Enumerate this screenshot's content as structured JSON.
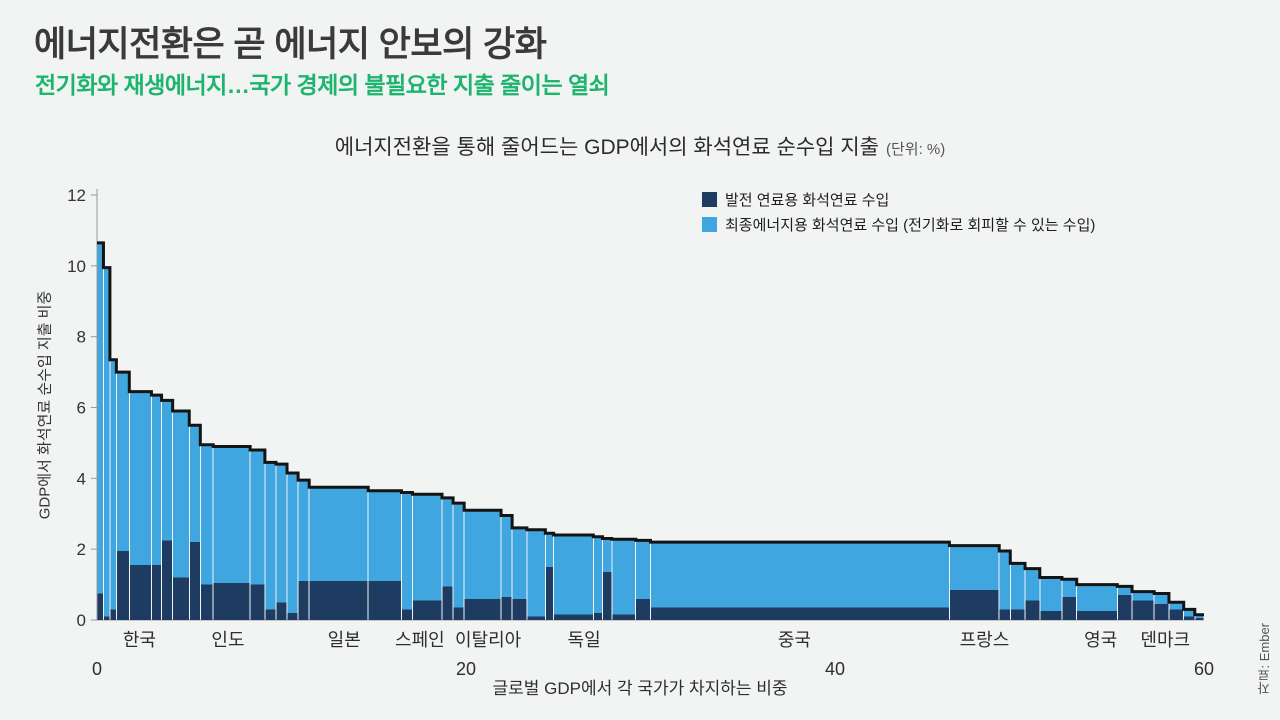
{
  "header": {
    "title": "에너지전환은 곧 에너지 안보의 강화",
    "subtitle": "전기화와 재생에너지…국가 경제의 불필요한 지출 줄이는 열쇠"
  },
  "source_note": "자료: Ember",
  "colors": {
    "background": "#f2f3f3",
    "title_gray": "#3a3a3a",
    "subtitle_green": "#1db46e"
  },
  "chart_data": {
    "type": "bar",
    "variant": "variable-width stacked step chart (marimekko style)",
    "title": "에너지전환을 통해 줄어드는 GDP에서의 화석연료 순수입 지출",
    "unit_note": "(단위: %)",
    "xlabel": "글로벌 GDP에서 각 국가가 차지하는 비중",
    "ylabel": "GDP에서 화석연료 순수입 지출 비중",
    "xlim": [
      0,
      60
    ],
    "ylim": [
      0,
      12
    ],
    "x_ticks": [
      0,
      20,
      40,
      60
    ],
    "y_ticks": [
      0,
      2,
      4,
      6,
      8,
      10,
      12
    ],
    "grid": false,
    "legend_position": "top-right",
    "colors": {
      "power": "#1e3c61",
      "final_energy": "#3fa6e0",
      "outline": "#141414",
      "axis": "#9a9a9a"
    },
    "legend": [
      {
        "key": "power",
        "label": "발전 연료용 화석연료 수입"
      },
      {
        "key": "final_energy",
        "label": "최종에너지용 화석연료 수입 (전기화로 회피할 수 있는 수입)"
      }
    ],
    "segments_format": [
      "x0 (% of global GDP, cumulative)",
      "x1",
      "power imports (% of GDP)",
      "total fossil net imports (% of GDP)"
    ],
    "segments": [
      [
        0.0,
        0.35,
        0.75,
        10.65
      ],
      [
        0.35,
        0.7,
        0.1,
        9.95
      ],
      [
        0.7,
        1.05,
        0.3,
        7.35
      ],
      [
        1.05,
        1.75,
        1.95,
        7.0
      ],
      [
        1.75,
        2.95,
        1.55,
        6.45
      ],
      [
        2.95,
        3.5,
        1.55,
        6.35
      ],
      [
        3.5,
        4.1,
        2.25,
        6.2
      ],
      [
        4.1,
        5.0,
        1.2,
        5.9
      ],
      [
        5.0,
        5.6,
        2.2,
        5.5
      ],
      [
        5.6,
        6.3,
        1.0,
        4.95
      ],
      [
        6.3,
        8.3,
        1.05,
        4.9
      ],
      [
        8.3,
        9.1,
        1.0,
        4.8
      ],
      [
        9.1,
        9.7,
        0.3,
        4.45
      ],
      [
        9.7,
        10.3,
        0.5,
        4.4
      ],
      [
        10.3,
        10.9,
        0.2,
        4.15
      ],
      [
        10.9,
        11.5,
        1.1,
        3.95
      ],
      [
        11.5,
        14.7,
        1.1,
        3.75
      ],
      [
        14.7,
        16.5,
        1.1,
        3.65
      ],
      [
        16.5,
        17.1,
        0.3,
        3.6
      ],
      [
        17.1,
        18.7,
        0.55,
        3.55
      ],
      [
        18.7,
        19.3,
        0.95,
        3.45
      ],
      [
        19.3,
        19.9,
        0.35,
        3.3
      ],
      [
        19.9,
        21.9,
        0.6,
        3.1
      ],
      [
        21.9,
        22.5,
        0.65,
        2.95
      ],
      [
        22.5,
        23.3,
        0.6,
        2.6
      ],
      [
        23.3,
        24.3,
        0.1,
        2.55
      ],
      [
        24.3,
        24.75,
        1.5,
        2.45
      ],
      [
        24.75,
        26.9,
        0.15,
        2.4
      ],
      [
        26.9,
        27.4,
        0.2,
        2.35
      ],
      [
        27.4,
        27.9,
        1.35,
        2.3
      ],
      [
        27.9,
        29.2,
        0.15,
        2.28
      ],
      [
        29.2,
        30.0,
        0.6,
        2.25
      ],
      [
        30.0,
        46.2,
        0.35,
        2.2
      ],
      [
        46.2,
        48.9,
        0.85,
        2.1
      ],
      [
        48.9,
        49.5,
        0.3,
        1.95
      ],
      [
        49.5,
        50.3,
        0.3,
        1.6
      ],
      [
        50.3,
        51.1,
        0.55,
        1.45
      ],
      [
        51.1,
        52.3,
        0.25,
        1.2
      ],
      [
        52.3,
        53.1,
        0.65,
        1.15
      ],
      [
        53.1,
        55.3,
        0.25,
        1.0
      ],
      [
        55.3,
        56.1,
        0.7,
        0.95
      ],
      [
        56.1,
        57.3,
        0.55,
        0.8
      ],
      [
        57.3,
        58.1,
        0.45,
        0.75
      ],
      [
        58.1,
        58.9,
        0.3,
        0.5
      ],
      [
        58.9,
        59.5,
        0.1,
        0.3
      ],
      [
        59.5,
        60.0,
        0.05,
        0.15
      ]
    ],
    "country_labels": [
      {
        "label": "한국",
        "x": 2.3
      },
      {
        "label": "인도",
        "x": 7.1
      },
      {
        "label": "일본",
        "x": 13.4
      },
      {
        "label": "스페인",
        "x": 17.5
      },
      {
        "label": "이탈리아",
        "x": 21.2
      },
      {
        "label": "독일",
        "x": 26.4
      },
      {
        "label": "중국",
        "x": 37.8
      },
      {
        "label": "프랑스",
        "x": 48.1
      },
      {
        "label": "영국",
        "x": 54.4
      },
      {
        "label": "덴마크",
        "x": 57.9
      }
    ]
  }
}
